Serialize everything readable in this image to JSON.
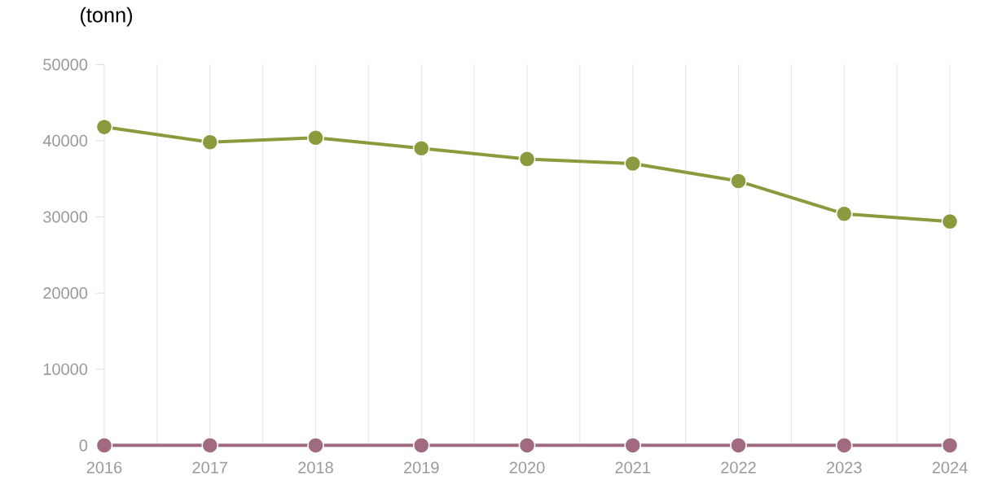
{
  "chart_data": {
    "type": "line",
    "ylabel": "(tonn)",
    "x": [
      2016,
      2017,
      2018,
      2019,
      2020,
      2021,
      2022,
      2023,
      2024
    ],
    "series": [
      {
        "color": "#8a9a3c",
        "values": [
          41800,
          39800,
          40400,
          39000,
          37600,
          37000,
          34700,
          30400,
          29400
        ]
      },
      {
        "color": "#a06a80",
        "values": [
          0,
          0,
          0,
          0,
          0,
          0,
          0,
          0,
          0
        ]
      }
    ],
    "xlim": [
      2016,
      2024
    ],
    "xticks": [
      2016,
      2017,
      2018,
      2019,
      2020,
      2021,
      2022,
      2023,
      2024
    ],
    "ylim": [
      0,
      50000
    ],
    "yticks": [
      0,
      10000,
      20000,
      30000,
      40000,
      50000
    ],
    "grid": "x",
    "marker": "circle",
    "line_style": "solid"
  }
}
